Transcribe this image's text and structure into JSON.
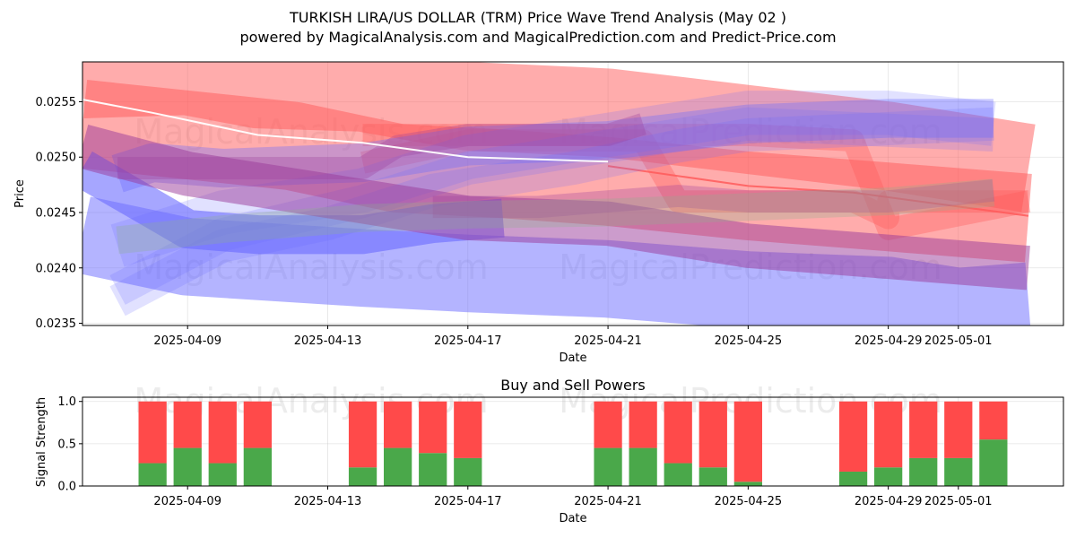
{
  "figure": {
    "title_line1": "TURKISH LIRA/US DOLLAR (TRM) Price Wave Trend Analysis (May 02 )",
    "title_line2": "powered by MagicalAnalysis.com and MagicalPrediction.com and Predict-Price.com",
    "watermarks": [
      "MagicalAnalysis.com",
      "MagicalPrediction.com"
    ]
  },
  "colors": {
    "red_band": "#ff5a5a",
    "blue_band": "#6a6aff",
    "purple_band": "#9a3a9a",
    "green_band": "#8fb08f",
    "buy": "#4aa84a",
    "sell": "#ff4a4a",
    "price_line": "#ffffff"
  },
  "chart_data": [
    {
      "type": "line",
      "title": "",
      "xlabel": "Date",
      "ylabel": "Price",
      "xlim": [
        "2025-04-06",
        "2025-05-04"
      ],
      "ylim": [
        0.02348,
        0.02586
      ],
      "x_ticks": [
        "2025-04-09",
        "2025-04-13",
        "2025-04-17",
        "2025-04-21",
        "2025-04-25",
        "2025-04-29",
        "2025-05-01"
      ],
      "y_ticks": [
        "0.0235",
        "0.0240",
        "0.0245",
        "0.0250",
        "0.0255"
      ],
      "y_tick_values": [
        0.0235,
        0.024,
        0.0245,
        0.025,
        0.0255
      ],
      "grid": true,
      "series": [
        {
          "color": "red",
          "alpha": 0.5,
          "width": 0.0008,
          "points": [
            [
              "2025-04-06",
              0.02575
            ],
            [
              "2025-04-09",
              0.02578
            ],
            [
              "2025-04-11",
              0.02566
            ],
            [
              "2025-04-14",
              0.02563
            ],
            [
              "2025-04-17",
              0.02546
            ],
            [
              "2025-04-21",
              0.0254
            ],
            [
              "2025-04-25",
              0.02525
            ],
            [
              "2025-04-29",
              0.0251
            ],
            [
              "2025-05-03",
              0.0249
            ]
          ]
        },
        {
          "color": "red",
          "alpha": 0.5,
          "width": 0.0008,
          "points": [
            [
              "2025-04-06",
              0.0253
            ],
            [
              "2025-04-09",
              0.0252
            ],
            [
              "2025-04-12",
              0.0251
            ],
            [
              "2025-04-15",
              0.0249
            ],
            [
              "2025-04-18",
              0.02485
            ],
            [
              "2025-04-21",
              0.02478
            ],
            [
              "2025-04-25",
              0.02465
            ],
            [
              "2025-04-29",
              0.02455
            ],
            [
              "2025-05-03",
              0.02445
            ]
          ]
        },
        {
          "color": "red",
          "alpha": 0.35,
          "width": 0.0002,
          "points": [
            [
              "2025-04-14",
              0.02495
            ],
            [
              "2025-04-17",
              0.02515
            ],
            [
              "2025-04-21",
              0.02515
            ],
            [
              "2025-04-22",
              0.02515
            ],
            [
              "2025-04-23",
              0.0246
            ],
            [
              "2025-04-25",
              0.0246
            ],
            [
              "2025-04-28",
              0.0246
            ],
            [
              "2025-04-29",
              0.02445
            ],
            [
              "2025-04-29",
              0.0246
            ],
            [
              "2025-05-03",
              0.0246
            ]
          ]
        },
        {
          "color": "red",
          "alpha": 0.35,
          "width": 0.0002,
          "points": [
            [
              "2025-04-14",
              0.0252
            ],
            [
              "2025-04-21",
              0.0252
            ],
            [
              "2025-04-25",
              0.0252
            ],
            [
              "2025-04-28",
              0.02515
            ],
            [
              "2025-04-29",
              0.02435
            ],
            [
              "2025-05-03",
              0.0246
            ]
          ]
        },
        {
          "color": "red",
          "alpha": 0.85,
          "width": 2e-05,
          "points": [
            [
              "2025-04-21",
              0.02492
            ],
            [
              "2025-04-25",
              0.02474
            ],
            [
              "2025-04-28",
              0.02468
            ],
            [
              "2025-05-03",
              0.02447
            ]
          ]
        },
        {
          "color": "blue",
          "alpha": 0.5,
          "width": 0.0007,
          "points": [
            [
              "2025-04-06",
              0.0243
            ],
            [
              "2025-04-09",
              0.0241
            ],
            [
              "2025-04-14",
              0.024
            ],
            [
              "2025-04-17",
              0.02395
            ],
            [
              "2025-04-21",
              0.0239
            ],
            [
              "2025-04-25",
              0.0238
            ],
            [
              "2025-04-29",
              0.02375
            ],
            [
              "2025-05-01",
              0.02365
            ],
            [
              "2025-05-03",
              0.0237
            ]
          ]
        },
        {
          "color": "blue",
          "alpha": 0.6,
          "width": 0.00035,
          "points": [
            [
              "2025-04-06",
              0.0249
            ],
            [
              "2025-04-09",
              0.02435
            ],
            [
              "2025-04-11",
              0.0243
            ],
            [
              "2025-04-14",
              0.0243
            ],
            [
              "2025-04-16",
              0.0244
            ],
            [
              "2025-04-18",
              0.02445
            ]
          ]
        },
        {
          "color": "blue",
          "alpha": 0.35,
          "width": 0.00035,
          "points": [
            [
              "2025-04-07",
              0.02485
            ],
            [
              "2025-04-08",
              0.02495
            ],
            [
              "2025-04-10",
              0.0249
            ],
            [
              "2025-04-14",
              0.02495
            ],
            [
              "2025-04-17",
              0.0251
            ],
            [
              "2025-04-21",
              0.02515
            ],
            [
              "2025-04-25",
              0.0253
            ],
            [
              "2025-04-29",
              0.02535
            ],
            [
              "2025-05-02",
              0.02535
            ]
          ]
        },
        {
          "color": "blue",
          "alpha": 0.2,
          "width": 0.0004,
          "points": [
            [
              "2025-04-07",
              0.0242
            ],
            [
              "2025-04-10",
              0.0245
            ],
            [
              "2025-04-14",
              0.0247
            ],
            [
              "2025-04-17",
              0.025
            ],
            [
              "2025-04-21",
              0.0252
            ],
            [
              "2025-04-25",
              0.0254
            ],
            [
              "2025-04-29",
              0.0254
            ],
            [
              "2025-05-02",
              0.0253
            ]
          ]
        },
        {
          "color": "blue",
          "alpha": 0.2,
          "width": 0.0003,
          "points": [
            [
              "2025-04-07",
              0.0238
            ],
            [
              "2025-04-10",
              0.0243
            ],
            [
              "2025-04-14",
              0.0246
            ],
            [
              "2025-04-17",
              0.0249
            ],
            [
              "2025-04-21",
              0.0251
            ],
            [
              "2025-04-25",
              0.0253
            ],
            [
              "2025-05-02",
              0.0252
            ]
          ]
        },
        {
          "color": "blue",
          "alpha": 0.2,
          "width": 0.0003,
          "points": [
            [
              "2025-04-07",
              0.0237
            ],
            [
              "2025-04-10",
              0.0242
            ],
            [
              "2025-04-13",
              0.0244
            ],
            [
              "2025-04-16",
              0.0247
            ],
            [
              "2025-04-20",
              0.0249
            ],
            [
              "2025-04-23",
              0.0251
            ],
            [
              "2025-04-25",
              0.0252
            ],
            [
              "2025-05-02",
              0.0253
            ]
          ]
        },
        {
          "color": "purple",
          "alpha": 0.5,
          "width": 0.0004,
          "points": [
            [
              "2025-04-06",
              0.0251
            ],
            [
              "2025-04-09",
              0.02485
            ],
            [
              "2025-04-11",
              0.02475
            ],
            [
              "2025-04-14",
              0.0246
            ],
            [
              "2025-04-17",
              0.02445
            ],
            [
              "2025-04-21",
              0.0244
            ],
            [
              "2025-04-25",
              0.0242
            ],
            [
              "2025-04-29",
              0.0241
            ],
            [
              "2025-05-03",
              0.024
            ]
          ]
        },
        {
          "color": "purple",
          "alpha": 0.3,
          "width": 0.0002,
          "points": [
            [
              "2025-04-07",
              0.0249
            ],
            [
              "2025-04-10",
              0.0249
            ],
            [
              "2025-04-14",
              0.0249
            ],
            [
              "2025-04-15",
              0.0251
            ],
            [
              "2025-04-17",
              0.0252
            ],
            [
              "2025-04-21",
              0.0252
            ],
            [
              "2025-04-22",
              0.0253
            ]
          ]
        },
        {
          "color": "purple",
          "alpha": 0.3,
          "width": 0.0002,
          "points": [
            [
              "2025-04-16",
              0.02455
            ],
            [
              "2025-04-19",
              0.02455
            ],
            [
              "2025-04-21",
              0.0246
            ],
            [
              "2025-04-23",
              0.02465
            ],
            [
              "2025-04-25",
              0.0246
            ],
            [
              "2025-04-29",
              0.0246
            ],
            [
              "2025-05-02",
              0.0247
            ]
          ]
        },
        {
          "color": "green",
          "alpha": 0.3,
          "width": 0.00025,
          "points": [
            [
              "2025-04-07",
              0.02425
            ],
            [
              "2025-04-10",
              0.02435
            ],
            [
              "2025-04-14",
              0.02445
            ],
            [
              "2025-04-17",
              0.02448
            ],
            [
              "2025-04-21",
              0.0245
            ],
            [
              "2025-04-25",
              0.02455
            ],
            [
              "2025-04-29",
              0.0246
            ],
            [
              "2025-05-02",
              0.02468
            ]
          ]
        },
        {
          "color": "white",
          "alpha": 0.95,
          "width": 1e-05,
          "points": [
            [
              "2025-04-06",
              0.02552
            ],
            [
              "2025-04-08",
              0.0254
            ],
            [
              "2025-04-11",
              0.0252
            ],
            [
              "2025-04-14",
              0.02513
            ],
            [
              "2025-04-17",
              0.025
            ],
            [
              "2025-04-21",
              0.02496
            ]
          ]
        }
      ]
    },
    {
      "type": "bar",
      "title": "Buy and Sell Powers",
      "xlabel": "Date",
      "ylabel": "Signal Strength",
      "ylim": [
        0,
        1.05
      ],
      "y_ticks": [
        "0.0",
        "0.5",
        "1.0"
      ],
      "y_tick_values": [
        0,
        0.5,
        1.0
      ],
      "x_ticks": [
        "2025-04-09",
        "2025-04-13",
        "2025-04-17",
        "2025-04-21",
        "2025-04-25",
        "2025-04-29",
        "2025-05-01"
      ],
      "grid": true,
      "categories": [
        "2025-04-08",
        "2025-04-09",
        "2025-04-10",
        "2025-04-11",
        "2025-04-14",
        "2025-04-15",
        "2025-04-16",
        "2025-04-17",
        "2025-04-21",
        "2025-04-22",
        "2025-04-23",
        "2025-04-24",
        "2025-04-25",
        "2025-04-28",
        "2025-04-29",
        "2025-04-30",
        "2025-05-01",
        "2025-05-02"
      ],
      "buy": [
        0.27,
        0.45,
        0.27,
        0.45,
        0.22,
        0.45,
        0.39,
        0.33,
        0.45,
        0.45,
        0.27,
        0.22,
        0.05,
        0.17,
        0.22,
        0.33,
        0.33,
        0.55
      ],
      "sell": [
        0.73,
        0.55,
        0.73,
        0.55,
        0.78,
        0.55,
        0.61,
        0.67,
        0.55,
        0.55,
        0.73,
        0.78,
        0.95,
        0.83,
        0.78,
        0.67,
        0.67,
        0.45
      ]
    }
  ]
}
